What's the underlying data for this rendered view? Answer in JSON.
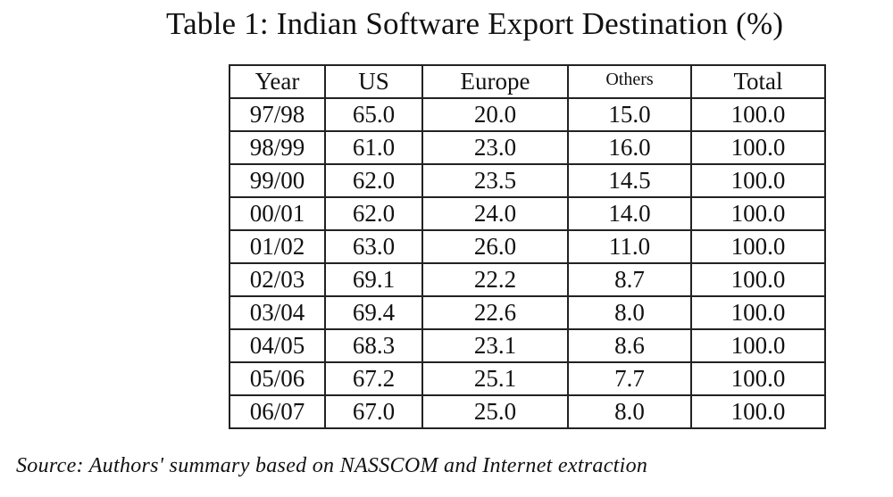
{
  "title": "Table 1: Indian Software Export Destination (%)",
  "table": {
    "headers": [
      "Year",
      "US",
      "Europe",
      "Others",
      "Total"
    ],
    "rows": [
      [
        "97/98",
        "65.0",
        "20.0",
        "15.0",
        "100.0"
      ],
      [
        "98/99",
        "61.0",
        "23.0",
        "16.0",
        "100.0"
      ],
      [
        "99/00",
        "62.0",
        "23.5",
        "14.5",
        "100.0"
      ],
      [
        "00/01",
        "62.0",
        "24.0",
        "14.0",
        "100.0"
      ],
      [
        "01/02",
        "63.0",
        "26.0",
        "11.0",
        "100.0"
      ],
      [
        "02/03",
        "69.1",
        "22.2",
        "8.7",
        "100.0"
      ],
      [
        "03/04",
        "69.4",
        "22.6",
        "8.0",
        "100.0"
      ],
      [
        "04/05",
        "68.3",
        "23.1",
        "8.6",
        "100.0"
      ],
      [
        "05/06",
        "67.2",
        "25.1",
        "7.7",
        "100.0"
      ],
      [
        "06/07",
        "67.0",
        "25.0",
        "8.0",
        "100.0"
      ]
    ]
  },
  "source": "Source: Authors' summary based on NASSCOM and Internet extraction"
}
